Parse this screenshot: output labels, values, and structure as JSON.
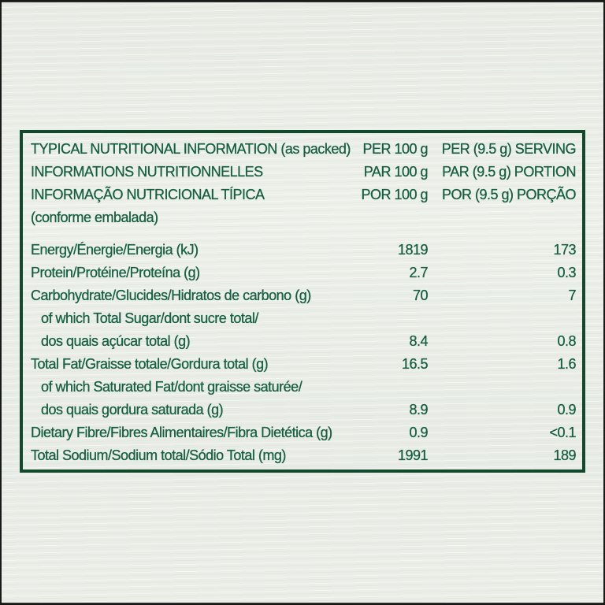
{
  "page": {
    "background_color": "#e9ede6",
    "text_color": "#175f41",
    "table_border_color": "#12492d"
  },
  "table": {
    "header": [
      {
        "label": "TYPICAL NUTRITIONAL INFORMATION (as packed)",
        "per_100g": "PER 100 g",
        "per_serving": "PER (9.5 g) SERVING"
      },
      {
        "label": "INFORMATIONS NUTRITIONNELLES",
        "per_100g": "PAR 100 g",
        "per_serving": "PAR (9.5 g) PORTION"
      },
      {
        "label": "INFORMAÇÃO NUTRICIONAL TÍPICA",
        "per_100g": "POR 100 g",
        "per_serving": "POR (9.5 g) PORÇÃO"
      },
      {
        "label": "(conforme embalada)",
        "per_100g": "",
        "per_serving": ""
      }
    ],
    "rows": [
      {
        "label": "Energy/Énergie/Energia (kJ)",
        "per_100g": "1819",
        "per_serving": "173"
      },
      {
        "label": "Protein/Protéine/Proteína (g)",
        "per_100g": "2.7",
        "per_serving": "0.3"
      },
      {
        "label": "Carbohydrate/Glucides/Hidratos de carbono (g)",
        "per_100g": "70",
        "per_serving": "7"
      },
      {
        "label": "of which Total Sugar/dont sucre total/",
        "per_100g": "",
        "per_serving": ""
      },
      {
        "label": "dos quais açúcar total (g)",
        "per_100g": "8.4",
        "per_serving": "0.8"
      },
      {
        "label": "Total Fat/Graisse totale/Gordura total (g)",
        "per_100g": "16.5",
        "per_serving": "1.6"
      },
      {
        "label": "of which Saturated Fat/dont graisse saturée/",
        "per_100g": "",
        "per_serving": ""
      },
      {
        "label": "dos quais gordura saturada (g)",
        "per_100g": "8.9",
        "per_serving": "0.9"
      },
      {
        "label": "Dietary Fibre/Fibres Alimentaires/Fibra Dietética (g)",
        "per_100g": "0.9",
        "per_serving": "<0.1"
      },
      {
        "label": "Total Sodium/Sodium total/Sódio Total (mg)",
        "per_100g": "1991",
        "per_serving": "189"
      }
    ]
  }
}
